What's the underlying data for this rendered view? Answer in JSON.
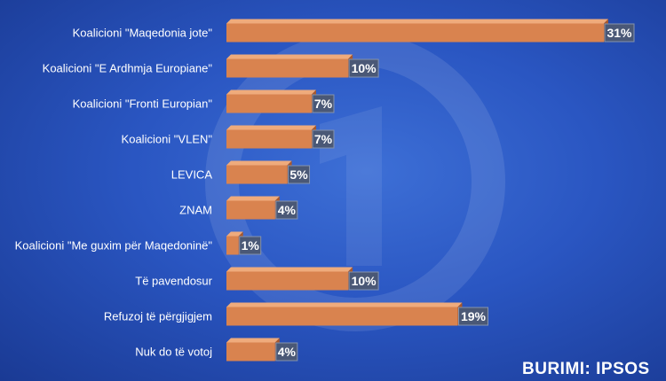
{
  "chart_data": {
    "type": "bar",
    "orientation": "horizontal",
    "categories": [
      "Koalicioni \"Maqedonia jote\"",
      "Koalicioni \"E Ardhmja Europiane\"",
      "Koalicioni \"Fronti Europian\"",
      "Koalicioni \"VLEN\"",
      "LEVICA",
      "ZNAM",
      "Koalicioni \"Me guxim për Maqedoninë\"",
      "Të pavendosur",
      "Refuzoj të përgjigjem",
      "Nuk do të votoj"
    ],
    "values": [
      31,
      10,
      7,
      7,
      5,
      4,
      1,
      10,
      19,
      4
    ],
    "value_labels": [
      "31%",
      "10%",
      "7%",
      "7%",
      "5%",
      "4%",
      "1%",
      "10%",
      "19%",
      "4%"
    ],
    "xlim": [
      0,
      31
    ],
    "grid": false,
    "bar_color": "#d9834f"
  },
  "source": "BURIMI: IPSOS",
  "watermark": "21-logo-icon"
}
